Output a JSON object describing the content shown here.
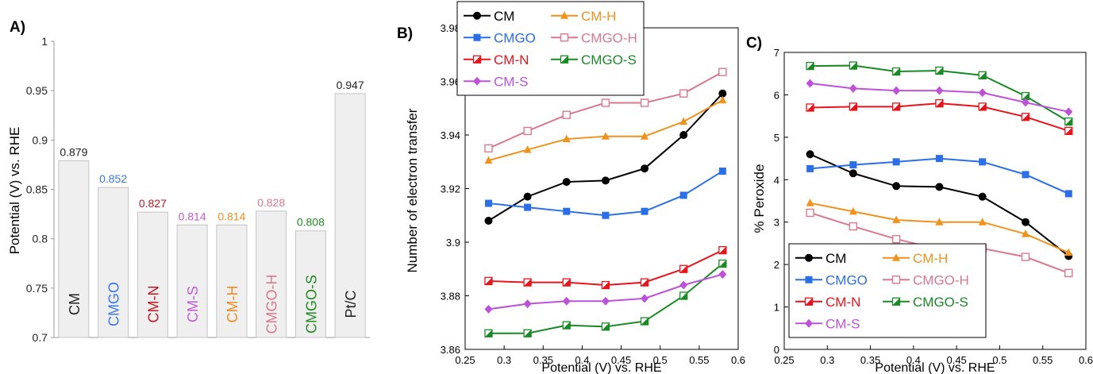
{
  "chart_data": [
    {
      "type": "bar",
      "panel_label": "A)",
      "ylabel": "Potential (V) vs. RHE",
      "ylim": [
        0.7,
        1.0
      ],
      "yticks": [
        "0.7",
        "0.75",
        "0.8",
        "0.85",
        "0.9",
        "0.95",
        "1"
      ],
      "categories": [
        "CM",
        "CMGO",
        "CM-N",
        "CM-S",
        "CM-H",
        "CMGO-H",
        "CMGO-S",
        "Pt/C"
      ],
      "values": [
        0.879,
        0.852,
        0.827,
        0.814,
        0.814,
        0.828,
        0.808,
        0.947
      ],
      "value_labels": [
        "0.879",
        "0.852",
        "0.827",
        "0.814",
        "0.814",
        "0.828",
        "0.808",
        "0.947"
      ],
      "label_colors": [
        "#222222",
        "#3b78e7",
        "#c0161f",
        "#c25ad6",
        "#f08a1c",
        "#d9788e",
        "#1f8a1f",
        "#222222"
      ],
      "bar_color": "#efefef"
    },
    {
      "type": "line",
      "panel_label": "B)",
      "xlabel": "Potential (V) vs. RHE",
      "ylabel": "Number of electron transfer",
      "xlim": [
        0.25,
        0.6
      ],
      "ylim": [
        3.86,
        3.98
      ],
      "xticks": [
        "0.25",
        "0.3",
        "0.35",
        "0.4",
        "0.45",
        "0.5",
        "0.55",
        "0.6"
      ],
      "yticks": [
        "3.86",
        "3.88",
        "3.9",
        "3.92",
        "3.94",
        "3.96",
        "3.98"
      ],
      "x": [
        0.28,
        0.33,
        0.38,
        0.43,
        0.48,
        0.53,
        0.58
      ],
      "legend_location": "top-left",
      "series": [
        {
          "name": "CM",
          "color": "#000000",
          "marker": "circle",
          "values": [
            3.908,
            3.917,
            3.9225,
            3.923,
            3.9275,
            3.94,
            3.9555
          ]
        },
        {
          "name": "CM-H",
          "color": "#f0921e",
          "marker": "triangle",
          "values": [
            3.9305,
            3.9345,
            3.9385,
            3.9395,
            3.9395,
            3.945,
            3.953
          ]
        },
        {
          "name": "CMGO",
          "color": "#2a6ee8",
          "marker": "square",
          "values": [
            3.9145,
            3.913,
            3.9115,
            3.91,
            3.9115,
            3.9175,
            3.9265
          ]
        },
        {
          "name": "CMGO-H",
          "color": "#d9788e",
          "marker": "open-square",
          "values": [
            3.935,
            3.9415,
            3.9475,
            3.952,
            3.952,
            3.9555,
            3.9635
          ]
        },
        {
          "name": "CM-N",
          "color": "#e8141b",
          "marker": "half-square",
          "values": [
            3.8855,
            3.885,
            3.885,
            3.884,
            3.885,
            3.89,
            3.897
          ]
        },
        {
          "name": "CMGO-S",
          "color": "#1a8a26",
          "marker": "half-square",
          "values": [
            3.866,
            3.866,
            3.869,
            3.8685,
            3.8705,
            3.88,
            3.892
          ]
        },
        {
          "name": "CM-S",
          "color": "#bd52d8",
          "marker": "diamond",
          "values": [
            3.875,
            3.877,
            3.878,
            3.878,
            3.879,
            3.884,
            3.888
          ]
        }
      ]
    },
    {
      "type": "line",
      "panel_label": "C)",
      "xlabel": "Potential (V) vs. RHE",
      "ylabel": "% Peroxide",
      "xlim": [
        0.25,
        0.6
      ],
      "ylim": [
        0,
        7
      ],
      "xticks": [
        "0.25",
        "0.3",
        "0.35",
        "0.4",
        "0.45",
        "0.5",
        "0.55",
        "0.6"
      ],
      "yticks": [
        "0",
        "1",
        "2",
        "3",
        "4",
        "5",
        "6",
        "7"
      ],
      "x": [
        0.28,
        0.33,
        0.38,
        0.43,
        0.48,
        0.53,
        0.58
      ],
      "legend_location": "bottom-left",
      "series": [
        {
          "name": "CM",
          "color": "#000000",
          "marker": "circle",
          "values": [
            4.6,
            4.15,
            3.85,
            3.83,
            3.6,
            3.0,
            2.2
          ]
        },
        {
          "name": "CM-H",
          "color": "#f0921e",
          "marker": "triangle",
          "values": [
            3.45,
            3.25,
            3.05,
            3.0,
            3.0,
            2.72,
            2.28
          ]
        },
        {
          "name": "CMGO",
          "color": "#2a6ee8",
          "marker": "square",
          "values": [
            4.26,
            4.35,
            4.42,
            4.5,
            4.42,
            4.12,
            3.67
          ]
        },
        {
          "name": "CMGO-H",
          "color": "#d9788e",
          "marker": "open-square",
          "values": [
            3.22,
            2.9,
            2.6,
            2.36,
            2.38,
            2.18,
            1.8
          ]
        },
        {
          "name": "CM-N",
          "color": "#e8141b",
          "marker": "half-square",
          "values": [
            5.7,
            5.72,
            5.72,
            5.8,
            5.72,
            5.48,
            5.15
          ]
        },
        {
          "name": "CMGO-S",
          "color": "#1a8a26",
          "marker": "half-square",
          "values": [
            6.68,
            6.69,
            6.55,
            6.57,
            6.46,
            5.97,
            5.37
          ]
        },
        {
          "name": "CM-S",
          "color": "#bd52d8",
          "marker": "diamond",
          "values": [
            6.27,
            6.15,
            6.1,
            6.1,
            6.05,
            5.82,
            5.6
          ]
        }
      ]
    }
  ]
}
